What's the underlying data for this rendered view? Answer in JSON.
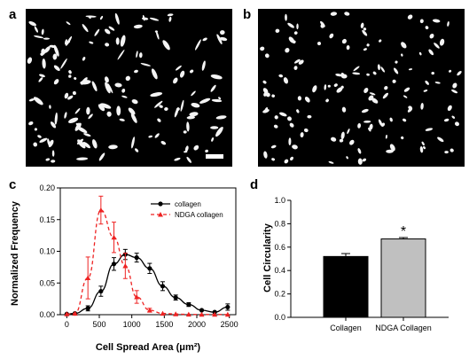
{
  "panels": {
    "a": {
      "letter": "a"
    },
    "b": {
      "letter": "b"
    },
    "c": {
      "letter": "c"
    },
    "d": {
      "letter": "d"
    }
  },
  "chart_data": [
    {
      "type": "line",
      "panel": "c",
      "xlabel": "Cell Spread Area (μm²)",
      "ylabel": "Normalized Frequency",
      "xlim": [
        -100,
        2600
      ],
      "ylim": [
        0,
        0.2
      ],
      "xticks": [
        0,
        500,
        1000,
        1500,
        2000,
        2500
      ],
      "yticks": [
        0.0,
        0.05,
        0.1,
        0.15,
        0.2
      ],
      "xtick_labels": [
        "0",
        "500",
        "1000",
        "1500",
        "2000",
        "2500"
      ],
      "ytick_labels": [
        "0.00",
        "0.05",
        "0.10",
        "0.15",
        "0.20"
      ],
      "legend_position": "top-right",
      "series": [
        {
          "name": "collagen",
          "color": "#000000",
          "marker": "circle",
          "linestyle": "solid",
          "x": [
            0,
            125,
            325,
            525,
            725,
            900,
            1075,
            1275,
            1475,
            1675,
            1875,
            2075,
            2275,
            2475
          ],
          "values": [
            0.001,
            0.002,
            0.01,
            0.037,
            0.08,
            0.095,
            0.09,
            0.073,
            0.045,
            0.027,
            0.016,
            0.007,
            0.004,
            0.012
          ],
          "error": [
            0.0005,
            0.001,
            0.004,
            0.008,
            0.01,
            0.008,
            0.007,
            0.008,
            0.007,
            0.004,
            0.003,
            0.002,
            0.002,
            0.005
          ]
        },
        {
          "name": "NDGA collagen",
          "color": "#ee2222",
          "marker": "triangle",
          "linestyle": "dashed",
          "x": [
            0,
            125,
            325,
            525,
            725,
            900,
            1075,
            1275,
            1475,
            1675,
            1875,
            2075,
            2275,
            2475
          ],
          "values": [
            0.001,
            0.002,
            0.058,
            0.165,
            0.122,
            0.077,
            0.028,
            0.007,
            0.002,
            0.001,
            0.0005,
            0.0003,
            0.0003,
            0.0003
          ],
          "error": [
            0.0005,
            0.001,
            0.033,
            0.022,
            0.024,
            0.02,
            0.01,
            0.003,
            0.001,
            0.0005,
            0.0003,
            0.0002,
            0.0002,
            0.0002
          ]
        }
      ]
    },
    {
      "type": "bar",
      "panel": "d",
      "categories": [
        "Collagen",
        "NDGA Collagen"
      ],
      "values": [
        0.52,
        0.67
      ],
      "errors": [
        0.025,
        0.012
      ],
      "colors": [
        "#000000",
        "#c0c0c0"
      ],
      "ylabel": "Cell Circularity",
      "ylim": [
        0,
        1.0
      ],
      "yticks": [
        0.0,
        0.2,
        0.4,
        0.6,
        0.8,
        1.0
      ],
      "ytick_labels": [
        "0.0",
        "0.2",
        "0.4",
        "0.6",
        "0.8",
        "1.0"
      ],
      "annotations": [
        {
          "category": "NDGA Collagen",
          "text": "*"
        }
      ]
    }
  ]
}
